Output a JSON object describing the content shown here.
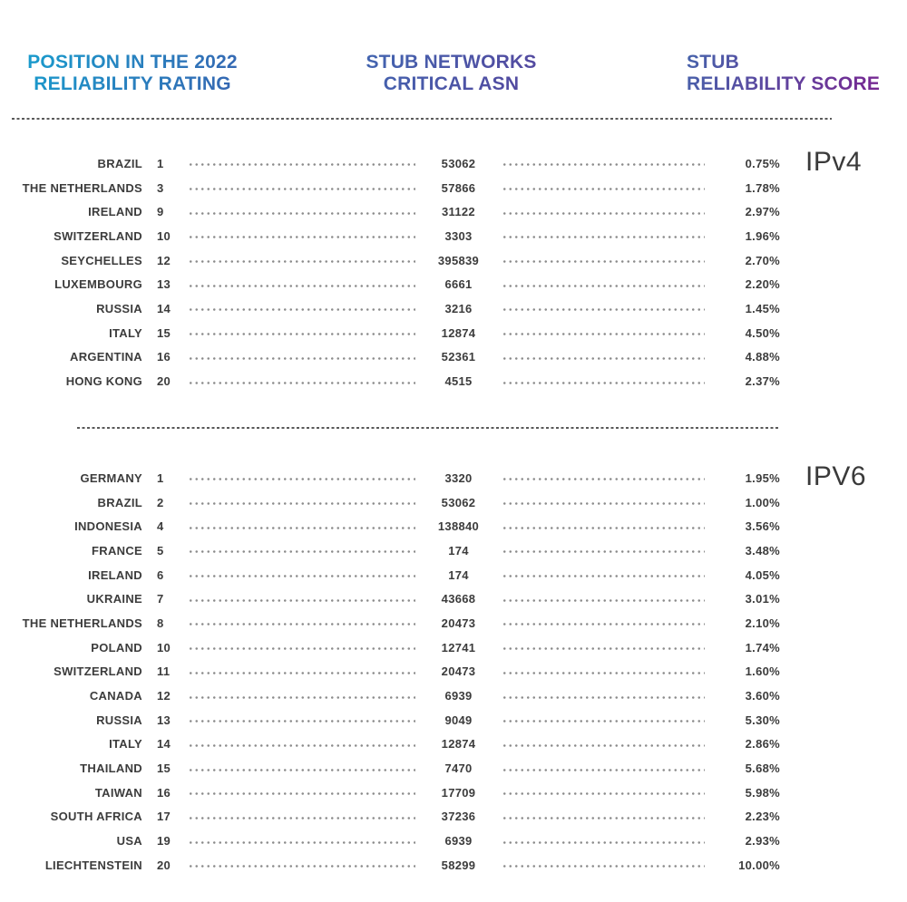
{
  "chart_data": {
    "type": "table",
    "columns": [
      {
        "line1": "POSITION IN THE 2022",
        "line2": "RELIABILITY RATING"
      },
      {
        "line1": "STUB NETWORKS",
        "line2": "CRITICAL ASN"
      },
      {
        "line1": "STUB",
        "line2": "RELIABILITY SCORE"
      }
    ],
    "sections": [
      {
        "label": "IPv4",
        "rows": [
          {
            "country": "BRAZIL",
            "rank": "1",
            "asn": "53062",
            "score": "0.75%"
          },
          {
            "country": "THE NETHERLANDS",
            "rank": "3",
            "asn": "57866",
            "score": "1.78%"
          },
          {
            "country": "IRELAND",
            "rank": "9",
            "asn": "31122",
            "score": "2.97%"
          },
          {
            "country": "SWITZERLAND",
            "rank": "10",
            "asn": "3303",
            "score": "1.96%"
          },
          {
            "country": "SEYCHELLES",
            "rank": "12",
            "asn": "395839",
            "score": "2.70%"
          },
          {
            "country": "LUXEMBOURG",
            "rank": "13",
            "asn": "6661",
            "score": "2.20%"
          },
          {
            "country": "RUSSIA",
            "rank": "14",
            "asn": "3216",
            "score": "1.45%"
          },
          {
            "country": "ITALY",
            "rank": "15",
            "asn": "12874",
            "score": "4.50%"
          },
          {
            "country": "ARGENTINA",
            "rank": "16",
            "asn": "52361",
            "score": "4.88%"
          },
          {
            "country": "HONG KONG",
            "rank": "20",
            "asn": "4515",
            "score": "2.37%"
          }
        ]
      },
      {
        "label": "IPV6",
        "rows": [
          {
            "country": "GERMANY",
            "rank": "1",
            "asn": "3320",
            "score": "1.95%"
          },
          {
            "country": "BRAZIL",
            "rank": "2",
            "asn": "53062",
            "score": "1.00%"
          },
          {
            "country": "INDONESIA",
            "rank": "4",
            "asn": "138840",
            "score": "3.56%"
          },
          {
            "country": "FRANCE",
            "rank": "5",
            "asn": "174",
            "score": "3.48%"
          },
          {
            "country": "IRELAND",
            "rank": "6",
            "asn": "174",
            "score": "4.05%"
          },
          {
            "country": "UKRAINE",
            "rank": "7",
            "asn": "43668",
            "score": "3.01%"
          },
          {
            "country": "THE NETHERLANDS",
            "rank": "8",
            "asn": "20473",
            "score": "2.10%"
          },
          {
            "country": "POLAND",
            "rank": "10",
            "asn": "12741",
            "score": "1.74%"
          },
          {
            "country": "SWITZERLAND",
            "rank": "11",
            "asn": "20473",
            "score": "1.60%"
          },
          {
            "country": "CANADA",
            "rank": "12",
            "asn": "6939",
            "score": "3.60%"
          },
          {
            "country": "RUSSIA",
            "rank": "13",
            "asn": "9049",
            "score": "5.30%"
          },
          {
            "country": "ITALY",
            "rank": "14",
            "asn": "12874",
            "score": "2.86%"
          },
          {
            "country": "THAILAND",
            "rank": "15",
            "asn": "7470",
            "score": "5.68%"
          },
          {
            "country": "TAIWAN",
            "rank": "16",
            "asn": "17709",
            "score": "5.98%"
          },
          {
            "country": "SOUTH AFRICA",
            "rank": "17",
            "asn": "37236",
            "score": "2.23%"
          },
          {
            "country": "USA",
            "rank": "19",
            "asn": "6939",
            "score": "2.93%"
          },
          {
            "country": "LIECHTENSTEIN",
            "rank": "20",
            "asn": "58299",
            "score": "10.00%"
          }
        ]
      }
    ]
  },
  "colors": {
    "header1_from": "#16a2d0",
    "header1_to": "#3a5fae",
    "header2_from": "#3e6cb4",
    "header2_to": "#59409a",
    "header3_from": "#4663ab",
    "header3_to": "#7e1e8e",
    "row_text": "#3c3c3c",
    "leader_dot": "#8c8c8c",
    "separator": "#5a5a5a"
  }
}
